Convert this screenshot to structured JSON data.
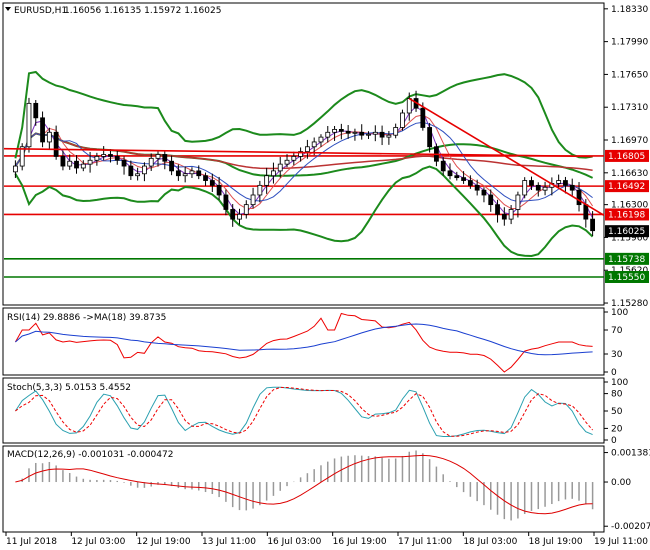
{
  "main": {
    "symbol": "EURUSD,H1",
    "ohlc": "1.16056 1.16135 1.15972 1.16025",
    "ylim": [
      1.1527,
      1.1838
    ],
    "y_ticks": [
      "1.18330",
      "1.17990",
      "1.17650",
      "1.17310",
      "1.16970",
      "1.16630",
      "1.16300",
      "1.15960",
      "1.15620",
      "1.15280"
    ],
    "y_tick_values": [
      1.1833,
      1.1799,
      1.1765,
      1.1731,
      1.1697,
      1.1663,
      1.163,
      1.1596,
      1.1562,
      1.1528
    ],
    "current_price": {
      "label": "1.16025",
      "value": 1.16025,
      "color": "#000000"
    },
    "red_levels": [
      {
        "label": "1.16805",
        "value": 1.16805
      },
      {
        "label": "1.16492",
        "value": 1.16492
      },
      {
        "label": "1.16198",
        "value": 1.16198
      }
    ],
    "green_levels": [
      {
        "label": "1.15738",
        "value": 1.15738
      },
      {
        "label": "1.15550",
        "value": 1.1555
      }
    ],
    "colors": {
      "red": "#e60000",
      "green": "#007700",
      "bollinger": "#1c8a1c",
      "candle": "#000000",
      "ma1": "#7b2fbe",
      "ma2": "#e05050",
      "ma3": "#2f4fbf"
    }
  },
  "rsi": {
    "label": "RSI(14) 29.8886 ->MA(18) 39.8735",
    "ylim": [
      0,
      100
    ],
    "ticks": [
      "100",
      "70",
      "30",
      "0"
    ],
    "tick_values": [
      100,
      70,
      30,
      0
    ]
  },
  "stoch": {
    "label": "Stoch(5,3,3) 5.0153 5.4552",
    "ylim": [
      0,
      100
    ],
    "ticks": [
      "100",
      "80",
      "50",
      "20",
      "0"
    ],
    "tick_values": [
      100,
      80,
      50,
      20,
      0
    ]
  },
  "macd": {
    "label": "MACD(12,26,9) -0.001031 -0.000472",
    "ylim": [
      -0.0022,
      0.0015
    ],
    "ticks": [
      "0.001381",
      "0.00",
      "-0.002072"
    ],
    "tick_values": [
      0.00138,
      0.0,
      -0.00207
    ]
  },
  "x_labels": [
    "11 Jul 2018",
    "12 Jul 03:00",
    "12 Jul 19:00",
    "13 Jul 11:00",
    "16 Jul 03:00",
    "16 Jul 19:00",
    "17 Jul 11:00",
    "18 Jul 03:00",
    "18 Jul 19:00",
    "19 Jul 11:00"
  ],
  "chart_data": {
    "type": "candlestick",
    "title": "EURUSD,H1",
    "series_close": [
      1.167,
      1.169,
      1.1735,
      1.172,
      1.1695,
      1.1705,
      1.168,
      1.167,
      1.1675,
      1.1668,
      1.1672,
      1.1676,
      1.168,
      1.1682,
      1.168,
      1.1676,
      1.167,
      1.166,
      1.1662,
      1.167,
      1.1678,
      1.1682,
      1.1675,
      1.1665,
      1.166,
      1.1662,
      1.1665,
      1.166,
      1.1655,
      1.165,
      1.164,
      1.1625,
      1.1615,
      1.162,
      1.163,
      1.164,
      1.165,
      1.166,
      1.1665,
      1.1672,
      1.1676,
      1.168,
      1.1685,
      1.169,
      1.1695,
      1.17,
      1.1705,
      1.1708,
      1.1706,
      1.1704,
      1.1705,
      1.1702,
      1.1703,
      1.1705,
      1.17,
      1.1702,
      1.171,
      1.1725,
      1.174,
      1.173,
      1.171,
      1.169,
      1.1675,
      1.1665,
      1.166,
      1.1658,
      1.1655,
      1.165,
      1.1645,
      1.164,
      1.163,
      1.162,
      1.1615,
      1.1625,
      1.164,
      1.1655,
      1.165,
      1.1645,
      1.1648,
      1.1652,
      1.1655,
      1.165,
      1.1645,
      1.163,
      1.1615,
      1.1603
    ]
  }
}
